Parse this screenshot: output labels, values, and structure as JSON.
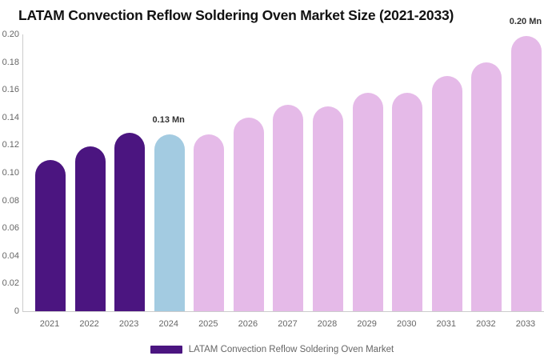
{
  "title": "LATAM Convection Reflow Soldering Oven Market Size (2021-2033)",
  "legend": {
    "label": "LATAM Convection Reflow Soldering Oven Market",
    "swatch_color": "#4b1580"
  },
  "chart_data": {
    "type": "bar",
    "title": "LATAM Convection Reflow Soldering Oven Market Size (2021-2033)",
    "unit": "Mn",
    "categories": [
      "2021",
      "2022",
      "2023",
      "2024",
      "2025",
      "2026",
      "2027",
      "2028",
      "2029",
      "2030",
      "2031",
      "2032",
      "2033"
    ],
    "values": [
      0.109,
      0.119,
      0.129,
      0.128,
      0.128,
      0.14,
      0.149,
      0.148,
      0.158,
      0.158,
      0.17,
      0.18,
      0.199
    ],
    "series_roles": [
      "historical",
      "historical",
      "historical",
      "current",
      "forecast",
      "forecast",
      "forecast",
      "forecast",
      "forecast",
      "forecast",
      "forecast",
      "forecast",
      "forecast"
    ],
    "palette": {
      "historical": "#4b1580",
      "current": "#a3cbe1",
      "forecast": "#e5bae8"
    },
    "annotations": [
      {
        "category_index": 3,
        "text": "0.13 Mn"
      },
      {
        "category_index": 12,
        "text": "0.20 Mn"
      }
    ],
    "xlabel": "",
    "ylabel": "",
    "ylim": [
      0,
      0.2
    ],
    "ytick_values": [
      0,
      0.02,
      0.04,
      0.06,
      0.08,
      0.1,
      0.12,
      0.14,
      0.16,
      0.18,
      0.2
    ],
    "ytick_labels": [
      "0",
      "0.02",
      "0.04",
      "0.06",
      "0.08",
      "0.10",
      "0.12",
      "0.14",
      "0.16",
      "0.18",
      "0.20"
    ],
    "grid": false,
    "legend_position": "bottom"
  }
}
